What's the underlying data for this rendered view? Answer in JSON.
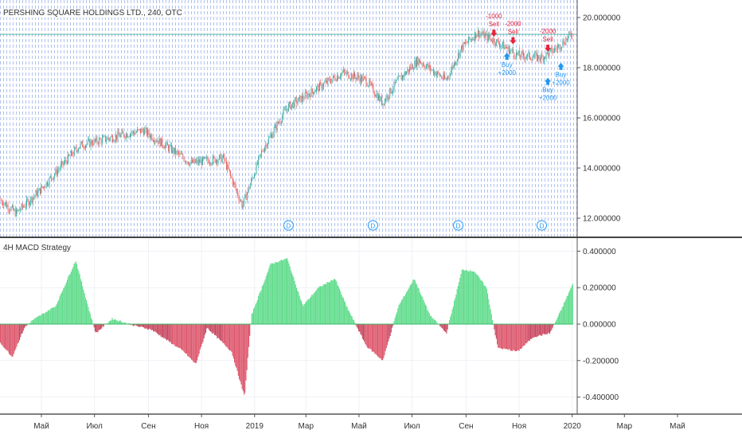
{
  "header": {
    "symbol_title": "PERSHING SQUARE HOLDINGS LTD., 240, OTC"
  },
  "indicator": {
    "title": "4H MACD Strategy"
  },
  "colors": {
    "up": "#26a69a",
    "down": "#ef5350",
    "hist_pos": "#4fd87f",
    "hist_neg": "#c2344f",
    "last_price_line": "#5bb8a8",
    "buy": "#2196f3",
    "sell": "#e8213a",
    "event_lines": "#9fb6ee"
  },
  "chart_data": [
    {
      "type": "candlestick",
      "title": "PERSHING SQUARE HOLDINGS LTD., 240, OTC",
      "ylim": [
        11.6,
        20.7
      ],
      "y_ticks": [
        "20.000000",
        "18.000000",
        "16.000000",
        "14.000000",
        "12.000000"
      ],
      "y_tick_values": [
        20,
        18,
        16,
        14,
        12
      ],
      "last_price": 19.33,
      "grid": true,
      "close_keypoints": [
        [
          "2018-03-14",
          12.76
        ],
        [
          "2018-04-02",
          12.2
        ],
        [
          "2018-04-29",
          13.1
        ],
        [
          "2018-06-14",
          14.9
        ],
        [
          "2018-07-30",
          15.3
        ],
        [
          "2018-08-26",
          15.5
        ],
        [
          "2018-10-20",
          14.2
        ],
        [
          "2018-11-26",
          14.4
        ],
        [
          "2018-12-18",
          12.5
        ],
        [
          "2019-01-10",
          14.7
        ],
        [
          "2019-02-07",
          16.4
        ],
        [
          "2019-03-15",
          17.2
        ],
        [
          "2019-04-12",
          17.8
        ],
        [
          "2019-05-09",
          17.5
        ],
        [
          "2019-05-28",
          16.6
        ],
        [
          "2019-06-15",
          17.5
        ],
        [
          "2019-07-08",
          18.3
        ],
        [
          "2019-08-09",
          17.5
        ],
        [
          "2019-08-27",
          18.8
        ],
        [
          "2019-09-14",
          19.4
        ],
        [
          "2019-10-03",
          19.1
        ],
        [
          "2019-10-30",
          18.5
        ],
        [
          "2019-11-27",
          18.4
        ],
        [
          "2019-12-15",
          18.8
        ],
        [
          "2020-01-02",
          19.4
        ]
      ],
      "signals": [
        {
          "date": "2019-10-03",
          "type": "sell",
          "label": "Sell",
          "qty": "-1000",
          "price": 19.2
        },
        {
          "date": "2019-10-18",
          "type": "buy",
          "label": "Buy",
          "qty": "+2000",
          "price": 18.6
        },
        {
          "date": "2019-10-25",
          "type": "sell",
          "label": "Sell",
          "qty": "-2000",
          "price": 18.9
        },
        {
          "date": "2019-12-04",
          "type": "sell",
          "label": "Sell",
          "qty": "-2000",
          "price": 18.6
        },
        {
          "date": "2019-12-04",
          "type": "buy",
          "label": "Buy",
          "qty": "+2000",
          "price": 17.6
        },
        {
          "date": "2019-12-19",
          "type": "buy",
          "label": "Buy",
          "qty": "+2000",
          "price": 18.2
        }
      ],
      "dividends": [
        {
          "date": "2019-02-09",
          "label": "D"
        },
        {
          "date": "2019-05-17",
          "label": "D"
        },
        {
          "date": "2019-08-23",
          "label": "D"
        },
        {
          "date": "2019-11-27",
          "label": "D"
        }
      ]
    },
    {
      "type": "bar",
      "title": "4H MACD Strategy",
      "series_kind": "histogram",
      "ylim": [
        -0.44,
        0.44
      ],
      "y_ticks": [
        "0.400000",
        "0.200000",
        "0.000000",
        "-0.200000",
        "-0.400000"
      ],
      "y_tick_values": [
        0.4,
        0.2,
        0,
        -0.2,
        -0.4
      ],
      "grid": true,
      "keypoints": [
        [
          "2018-03-14",
          -0.1
        ],
        [
          "2018-03-28",
          -0.18
        ],
        [
          "2018-04-11",
          -0.02
        ],
        [
          "2018-04-20",
          0.02
        ],
        [
          "2018-05-17",
          0.1
        ],
        [
          "2018-06-09",
          0.35
        ],
        [
          "2018-06-23",
          0.1
        ],
        [
          "2018-07-02",
          -0.05
        ],
        [
          "2018-07-21",
          0.03
        ],
        [
          "2018-08-17",
          -0.01
        ],
        [
          "2018-09-04",
          -0.03
        ],
        [
          "2018-10-11",
          -0.15
        ],
        [
          "2018-10-25",
          -0.22
        ],
        [
          "2018-11-07",
          -0.02
        ],
        [
          "2018-12-05",
          -0.15
        ],
        [
          "2018-12-20",
          -0.4
        ],
        [
          "2018-12-28",
          0.05
        ],
        [
          "2019-01-19",
          0.33
        ],
        [
          "2019-02-07",
          0.36
        ],
        [
          "2019-02-25",
          0.1
        ],
        [
          "2019-03-15",
          0.2
        ],
        [
          "2019-04-03",
          0.25
        ],
        [
          "2019-04-16",
          0.1
        ],
        [
          "2019-05-09",
          -0.12
        ],
        [
          "2019-05-28",
          -0.2
        ],
        [
          "2019-06-15",
          0.1
        ],
        [
          "2019-07-03",
          0.25
        ],
        [
          "2019-07-21",
          0.05
        ],
        [
          "2019-08-09",
          -0.05
        ],
        [
          "2019-08-27",
          0.3
        ],
        [
          "2019-09-10",
          0.29
        ],
        [
          "2019-09-24",
          0.2
        ],
        [
          "2019-10-07",
          -0.13
        ],
        [
          "2019-10-30",
          -0.15
        ],
        [
          "2019-11-17",
          -0.07
        ],
        [
          "2019-12-06",
          -0.05
        ],
        [
          "2019-12-19",
          0.08
        ],
        [
          "2020-01-02",
          0.23
        ]
      ]
    }
  ],
  "x_axis": {
    "ticks": [
      {
        "date": "2018-05-01",
        "label": "Май"
      },
      {
        "date": "2018-07-01",
        "label": "Июл"
      },
      {
        "date": "2018-09-01",
        "label": "Сен"
      },
      {
        "date": "2018-11-01",
        "label": "Ноя"
      },
      {
        "date": "2019-01-01",
        "label": "2019"
      },
      {
        "date": "2019-03-01",
        "label": "Мар"
      },
      {
        "date": "2019-05-01",
        "label": "Май"
      },
      {
        "date": "2019-07-01",
        "label": "Июл"
      },
      {
        "date": "2019-09-01",
        "label": "Сен"
      },
      {
        "date": "2019-11-01",
        "label": "Ноя"
      },
      {
        "date": "2020-01-01",
        "label": "2020"
      },
      {
        "date": "2020-03-01",
        "label": "Мар"
      },
      {
        "date": "2020-05-01",
        "label": "Май"
      }
    ]
  }
}
